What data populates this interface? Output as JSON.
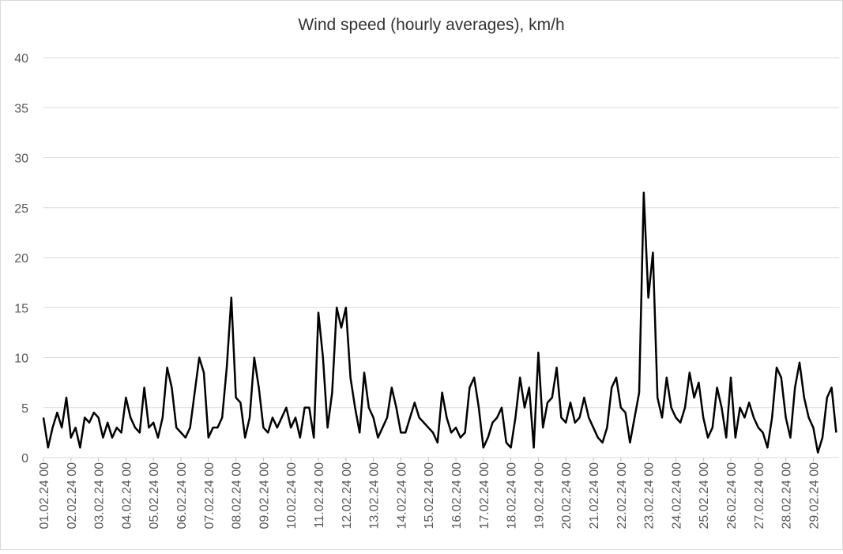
{
  "chart_data": {
    "type": "line",
    "title": "Wind speed (hourly averages), km/h",
    "categories": [
      "01.02.24 00",
      null,
      null,
      null,
      null,
      null,
      "02.02.24 00",
      null,
      null,
      null,
      null,
      null,
      "03.02.24 00",
      null,
      null,
      null,
      null,
      null,
      "04.02.24 00",
      null,
      null,
      null,
      null,
      null,
      "05.02.24 00",
      null,
      null,
      null,
      null,
      null,
      "06.02.24 00",
      null,
      null,
      null,
      null,
      null,
      "07.02.24 00",
      null,
      null,
      null,
      null,
      null,
      "08.02.24 00",
      null,
      null,
      null,
      null,
      null,
      "09.02.24 00",
      null,
      null,
      null,
      null,
      null,
      "10.02.24 00",
      null,
      null,
      null,
      null,
      null,
      "11.02.24 00",
      null,
      null,
      null,
      null,
      null,
      "12.02.24 00",
      null,
      null,
      null,
      null,
      null,
      "13.02.24 00",
      null,
      null,
      null,
      null,
      null,
      "14.02.24 00",
      null,
      null,
      null,
      null,
      null,
      "15.02.24 00",
      null,
      null,
      null,
      null,
      null,
      "16.02.24 00",
      null,
      null,
      null,
      null,
      null,
      "17.02.24 00",
      null,
      null,
      null,
      null,
      null,
      "18.02.24 00",
      null,
      null,
      null,
      null,
      null,
      "19.02.24 00",
      null,
      null,
      null,
      null,
      null,
      "20.02.24 00",
      null,
      null,
      null,
      null,
      null,
      "21.02.24 00",
      null,
      null,
      null,
      null,
      null,
      "22.02.24 00",
      null,
      null,
      null,
      null,
      null,
      "23.02.24 00",
      null,
      null,
      null,
      null,
      null,
      "24.02.24 00",
      null,
      null,
      null,
      null,
      null,
      "25.02.24 00",
      null,
      null,
      null,
      null,
      null,
      "26.02.24 00",
      null,
      null,
      null,
      null,
      null,
      "27.02.24 00",
      null,
      null,
      null,
      null,
      null,
      "28.02.24 00",
      null,
      null,
      null,
      null,
      null,
      "29.02.24 00",
      null,
      null,
      null,
      null,
      null
    ],
    "series": [
      {
        "color": "#000000",
        "values": [
          4,
          1,
          3,
          4.5,
          3,
          6,
          2,
          3,
          1,
          4,
          3.5,
          4.5,
          4,
          2,
          3.5,
          2,
          3,
          2.5,
          6,
          4,
          3,
          2.5,
          7,
          3,
          3.5,
          2,
          4,
          9,
          7,
          3,
          2.5,
          2,
          3,
          6.5,
          10,
          8.5,
          2,
          3,
          3,
          4,
          9,
          16,
          6,
          5.5,
          2,
          4,
          10,
          7,
          3,
          2.5,
          4,
          3,
          4,
          5,
          3,
          4,
          2,
          5,
          5,
          2,
          14.5,
          10,
          3,
          6.5,
          15,
          13,
          15,
          8,
          5,
          2.5,
          8.5,
          5,
          4,
          2,
          3,
          4,
          7,
          5,
          2.5,
          2.5,
          4,
          5.5,
          4,
          3.5,
          3,
          2.5,
          1.5,
          6.5,
          4,
          2.5,
          3,
          2,
          2.5,
          7,
          8,
          5,
          1,
          2,
          3.5,
          4,
          5,
          1.5,
          1,
          4,
          8,
          5,
          7,
          1,
          10.5,
          3,
          5.5,
          6,
          9,
          4,
          3.5,
          5.5,
          3.5,
          4,
          6,
          4,
          3,
          2,
          1.5,
          3,
          7,
          8,
          5,
          4.5,
          1.5,
          4,
          6.5,
          26.5,
          16,
          20.5,
          6,
          4,
          8,
          5,
          4,
          3.5,
          5,
          8.5,
          6,
          7.5,
          4,
          2,
          3,
          7,
          5,
          2,
          8,
          2,
          5,
          4,
          5.5,
          4,
          3,
          2.5,
          1,
          4,
          9,
          8,
          4,
          2,
          7,
          9.5,
          6,
          4,
          3,
          0.5,
          2,
          6,
          7,
          2.5
        ]
      }
    ],
    "ylim": [
      0,
      40
    ],
    "yticks": [
      0,
      5,
      10,
      15,
      20,
      25,
      30,
      35,
      40
    ],
    "grid": true
  }
}
